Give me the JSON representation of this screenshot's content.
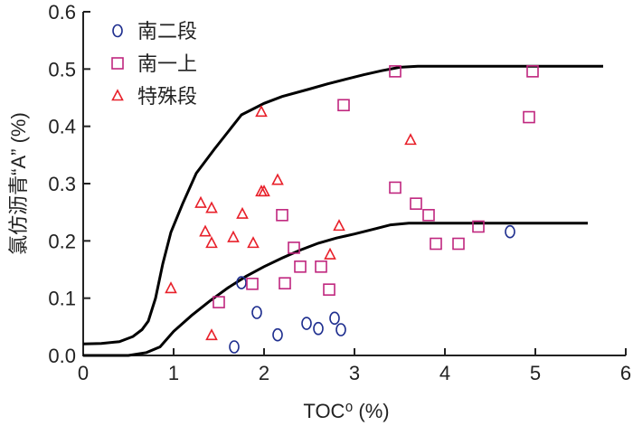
{
  "chart_data": {
    "type": "scatter",
    "xlabel": "TOC⁰ (%)",
    "ylabel": "氯仿沥青“A” (%)",
    "xlim": [
      0,
      6
    ],
    "ylim": [
      0,
      0.6
    ],
    "xticks": [
      "0",
      "1",
      "2",
      "3",
      "4",
      "5",
      "6"
    ],
    "yticks": [
      "0.0",
      "0.1",
      "0.2",
      "0.3",
      "0.4",
      "0.5",
      "0.6"
    ],
    "grid": false,
    "legend_position": "top-left",
    "series": [
      {
        "name": "南二段",
        "marker": "circle",
        "color": "#1f2f8f",
        "points": [
          [
            1.67,
            0.015
          ],
          [
            1.75,
            0.127
          ],
          [
            1.92,
            0.075
          ],
          [
            2.15,
            0.036
          ],
          [
            2.47,
            0.056
          ],
          [
            2.6,
            0.047
          ],
          [
            2.78,
            0.065
          ],
          [
            2.85,
            0.045
          ],
          [
            4.72,
            0.216
          ]
        ]
      },
      {
        "name": "南一上",
        "marker": "square",
        "color": "#c0267e",
        "points": [
          [
            1.5,
            0.093
          ],
          [
            1.87,
            0.125
          ],
          [
            2.2,
            0.245
          ],
          [
            2.23,
            0.126
          ],
          [
            2.33,
            0.188
          ],
          [
            2.4,
            0.155
          ],
          [
            2.63,
            0.155
          ],
          [
            2.72,
            0.115
          ],
          [
            2.88,
            0.437
          ],
          [
            3.45,
            0.496
          ],
          [
            3.45,
            0.293
          ],
          [
            3.68,
            0.265
          ],
          [
            3.82,
            0.245
          ],
          [
            3.9,
            0.195
          ],
          [
            4.15,
            0.195
          ],
          [
            4.37,
            0.225
          ],
          [
            4.93,
            0.416
          ],
          [
            4.97,
            0.496
          ]
        ]
      },
      {
        "name": "特殊段",
        "marker": "triangle",
        "color": "#e8202a",
        "points": [
          [
            0.97,
            0.117
          ],
          [
            1.3,
            0.266
          ],
          [
            1.35,
            0.216
          ],
          [
            1.42,
            0.257
          ],
          [
            1.42,
            0.196
          ],
          [
            1.42,
            0.035
          ],
          [
            1.66,
            0.206
          ],
          [
            1.76,
            0.247
          ],
          [
            1.88,
            0.196
          ],
          [
            1.97,
            0.286
          ],
          [
            1.97,
            0.425
          ],
          [
            2.0,
            0.286
          ],
          [
            2.15,
            0.306
          ],
          [
            2.73,
            0.176
          ],
          [
            2.83,
            0.226
          ],
          [
            3.62,
            0.376
          ]
        ]
      }
    ],
    "curves": [
      {
        "points": [
          [
            0.0,
            0.02
          ],
          [
            0.2,
            0.021
          ],
          [
            0.4,
            0.024
          ],
          [
            0.55,
            0.033
          ],
          [
            0.65,
            0.045
          ],
          [
            0.72,
            0.06
          ],
          [
            0.8,
            0.1
          ],
          [
            0.88,
            0.16
          ],
          [
            0.97,
            0.215
          ],
          [
            1.1,
            0.265
          ],
          [
            1.25,
            0.318
          ],
          [
            1.45,
            0.36
          ],
          [
            1.6,
            0.39
          ],
          [
            1.75,
            0.42
          ],
          [
            1.9,
            0.432
          ],
          [
            2.0,
            0.44
          ],
          [
            2.2,
            0.452
          ],
          [
            2.5,
            0.465
          ],
          [
            2.7,
            0.474
          ],
          [
            2.9,
            0.482
          ],
          [
            3.1,
            0.49
          ],
          [
            3.3,
            0.497
          ],
          [
            3.5,
            0.503
          ],
          [
            3.7,
            0.505
          ],
          [
            4.0,
            0.505
          ],
          [
            4.5,
            0.505
          ],
          [
            5.0,
            0.505
          ],
          [
            5.5,
            0.505
          ],
          [
            5.75,
            0.505
          ]
        ]
      },
      {
        "points": [
          [
            0.0,
            0.0
          ],
          [
            0.3,
            0.0
          ],
          [
            0.5,
            0.0
          ],
          [
            0.7,
            0.005
          ],
          [
            0.85,
            0.015
          ],
          [
            1.0,
            0.042
          ],
          [
            1.2,
            0.07
          ],
          [
            1.4,
            0.095
          ],
          [
            1.6,
            0.118
          ],
          [
            1.8,
            0.138
          ],
          [
            2.0,
            0.155
          ],
          [
            2.2,
            0.17
          ],
          [
            2.4,
            0.184
          ],
          [
            2.6,
            0.196
          ],
          [
            2.8,
            0.205
          ],
          [
            3.0,
            0.212
          ],
          [
            3.2,
            0.22
          ],
          [
            3.4,
            0.228
          ],
          [
            3.6,
            0.231
          ],
          [
            4.0,
            0.231
          ],
          [
            4.5,
            0.231
          ],
          [
            5.0,
            0.231
          ],
          [
            5.58,
            0.231
          ]
        ]
      }
    ]
  }
}
